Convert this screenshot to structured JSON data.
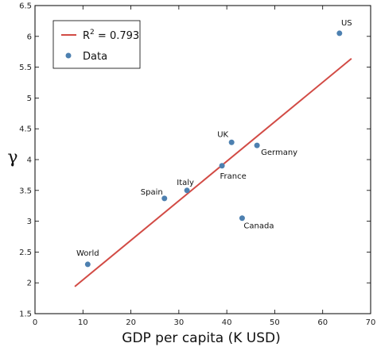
{
  "chart_data": {
    "type": "scatter",
    "xlabel": "GDP per capita (K USD)",
    "ylabel": "γ",
    "xlim": [
      0,
      70
    ],
    "ylim": [
      1.5,
      6.5
    ],
    "xticks": [
      0,
      10,
      20,
      30,
      40,
      50,
      60,
      70
    ],
    "yticks": [
      1.5,
      2,
      2.5,
      3,
      3.5,
      4,
      4.5,
      5,
      5.5,
      6,
      6.5
    ],
    "grid": false,
    "legend_position": "top-left",
    "series": [
      {
        "name": "Data",
        "kind": "scatter",
        "color": "#4d80b0",
        "points": [
          {
            "label": "World",
            "x": 11,
            "y": 2.3
          },
          {
            "label": "Spain",
            "x": 27,
            "y": 3.37
          },
          {
            "label": "Italy",
            "x": 31.7,
            "y": 3.5
          },
          {
            "label": "France",
            "x": 39,
            "y": 3.9
          },
          {
            "label": "UK",
            "x": 41,
            "y": 4.28
          },
          {
            "label": "Germany",
            "x": 46.3,
            "y": 4.23
          },
          {
            "label": "Canada",
            "x": 43.2,
            "y": 3.05
          },
          {
            "label": "US",
            "x": 63.5,
            "y": 6.05
          }
        ]
      },
      {
        "name_prefix": "R",
        "name_sup": "2",
        "name_suffix": " = 0.793",
        "kind": "line",
        "color": "#d24b45",
        "x": [
          8.3,
          66
        ],
        "y": [
          1.94,
          5.64
        ]
      }
    ]
  }
}
